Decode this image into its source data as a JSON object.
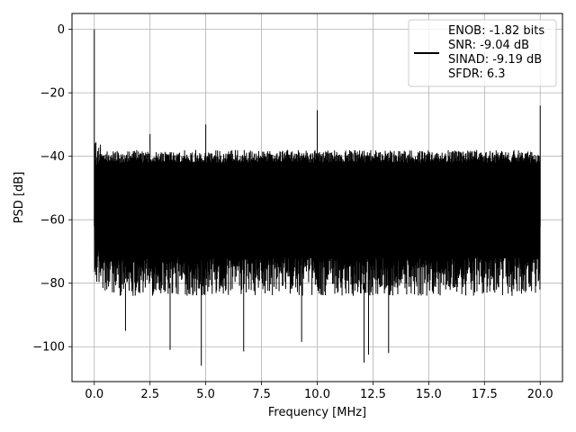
{
  "chart_data": {
    "type": "line",
    "xlabel": "Frequency [MHz]",
    "ylabel": "PSD [dB]",
    "xlim": [
      -1.0,
      21.0
    ],
    "ylim": [
      -111.0,
      5.0
    ],
    "xticks": [
      0.0,
      2.5,
      5.0,
      7.5,
      10.0,
      12.5,
      15.0,
      17.5,
      20.0
    ],
    "xtick_labels": [
      "0.0",
      "2.5",
      "5.0",
      "7.5",
      "10.0",
      "12.5",
      "15.0",
      "17.5",
      "20.0"
    ],
    "yticks": [
      0,
      -20,
      -40,
      -60,
      -80,
      -100
    ],
    "ytick_labels": [
      "0",
      "−20",
      "−40",
      "−60",
      "−80",
      "−100"
    ],
    "grid": true,
    "series_color": "#000000",
    "noise_band": {
      "upper_dB": -38,
      "lower_dB": -80,
      "floor_dB": -60
    },
    "spurs": [
      {
        "x": 0.0,
        "y": 0.0
      },
      {
        "x": 2.5,
        "y": -33
      },
      {
        "x": 5.0,
        "y": -30
      },
      {
        "x": 10.0,
        "y": -25.5
      },
      {
        "x": 20.0,
        "y": -24
      }
    ],
    "dips": [
      {
        "x": 1.4,
        "y": -95
      },
      {
        "x": 3.4,
        "y": -101
      },
      {
        "x": 4.8,
        "y": -106
      },
      {
        "x": 6.7,
        "y": -101.5
      },
      {
        "x": 9.3,
        "y": -98.5
      },
      {
        "x": 12.1,
        "y": -105
      },
      {
        "x": 12.3,
        "y": -102.5
      },
      {
        "x": 13.2,
        "y": -102
      }
    ],
    "legend": {
      "position": "top-right",
      "lines": [
        "ENOB: -1.82 bits",
        "SNR: -9.04 dB",
        "SINAD: -9.19 dB",
        "SFDR: 6.3"
      ]
    }
  }
}
